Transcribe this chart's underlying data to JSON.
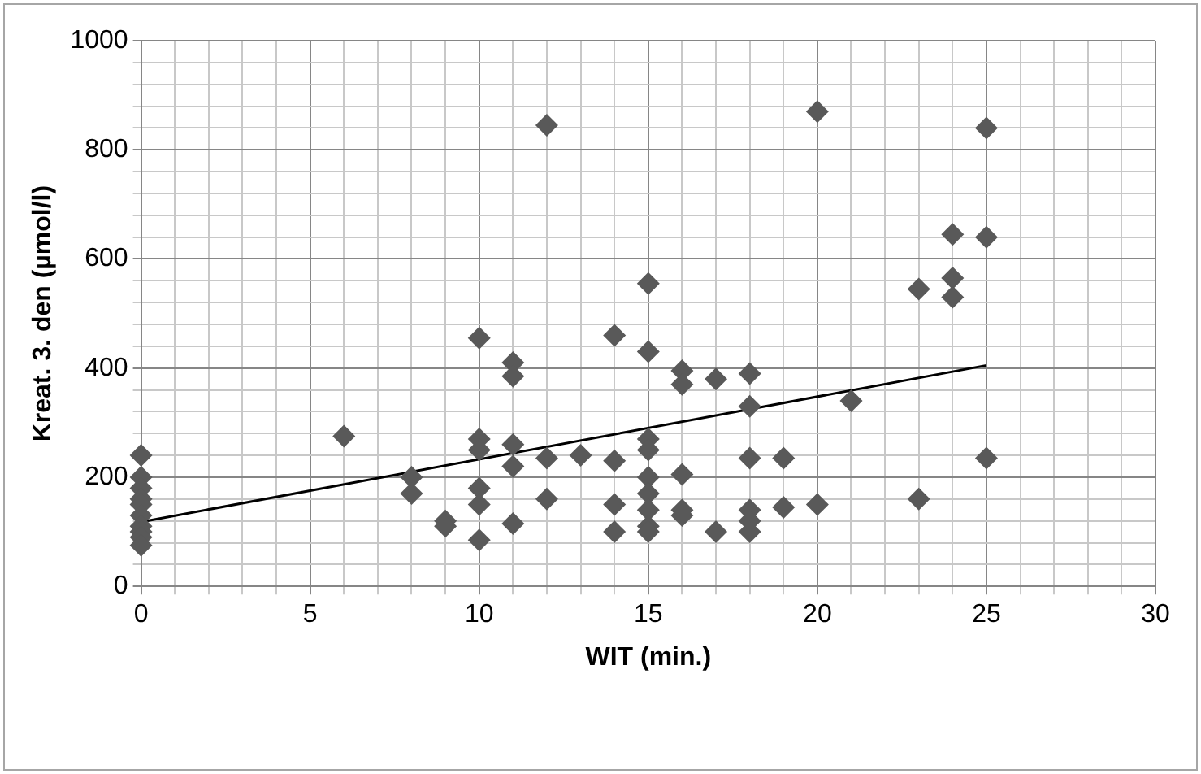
{
  "chart_data": {
    "type": "scatter",
    "xlabel": "WIT (min.)",
    "ylabel": "Kreat. 3. den (µmol/l)",
    "xlim": [
      0,
      30
    ],
    "ylim": [
      0,
      1000
    ],
    "xticks": [
      0,
      {
        "value": 1,
        "label": null
      },
      {
        "value": 2,
        "label": null
      },
      {
        "value": 3,
        "label": null
      },
      {
        "value": 4,
        "label": null
      },
      5,
      {
        "value": 6,
        "label": null
      },
      {
        "value": 7,
        "label": null
      },
      {
        "value": 8,
        "label": null
      },
      {
        "value": 9,
        "label": null
      },
      10,
      {
        "value": 11,
        "label": null
      },
      {
        "value": 12,
        "label": null
      },
      {
        "value": 13,
        "label": null
      },
      {
        "value": 14,
        "label": null
      },
      15,
      {
        "value": 16,
        "label": null
      },
      {
        "value": 17,
        "label": null
      },
      {
        "value": 18,
        "label": null
      },
      {
        "value": 19,
        "label": null
      },
      20,
      {
        "value": 21,
        "label": null
      },
      {
        "value": 22,
        "label": null
      },
      {
        "value": 23,
        "label": null
      },
      {
        "value": 24,
        "label": null
      },
      25,
      {
        "value": 26,
        "label": null
      },
      {
        "value": 27,
        "label": null
      },
      {
        "value": 28,
        "label": null
      },
      {
        "value": 29,
        "label": null
      },
      30
    ],
    "yticks": [
      0,
      {
        "value": 40,
        "label": null
      },
      {
        "value": 80,
        "label": null
      },
      {
        "value": 120,
        "label": null
      },
      {
        "value": 160,
        "label": null
      },
      200,
      {
        "value": 240,
        "label": null
      },
      {
        "value": 280,
        "label": null
      },
      {
        "value": 320,
        "label": null
      },
      {
        "value": 360,
        "label": null
      },
      400,
      {
        "value": 440,
        "label": null
      },
      {
        "value": 480,
        "label": null
      },
      {
        "value": 520,
        "label": null
      },
      {
        "value": 560,
        "label": null
      },
      600,
      {
        "value": 640,
        "label": null
      },
      {
        "value": 680,
        "label": null
      },
      {
        "value": 720,
        "label": null
      },
      {
        "value": 760,
        "label": null
      },
      800,
      {
        "value": 840,
        "label": null
      },
      {
        "value": 880,
        "label": null
      },
      {
        "value": 920,
        "label": null
      },
      {
        "value": 960,
        "label": null
      },
      1000
    ],
    "grid": true,
    "legend": false,
    "series": [
      {
        "marker": "diamond",
        "color": "#595959",
        "x": [
          0,
          0,
          0,
          0,
          0,
          0,
          0,
          0,
          0,
          0,
          6,
          8,
          8,
          9,
          9,
          10,
          10,
          10,
          10,
          10,
          10,
          11,
          11,
          11,
          11,
          11,
          12,
          12,
          12,
          13,
          14,
          14,
          14,
          14,
          15,
          15,
          15,
          15,
          15,
          15,
          15,
          15,
          15,
          16,
          16,
          16,
          16,
          16,
          17,
          17,
          18,
          18,
          18,
          18,
          18,
          18,
          19,
          19,
          20,
          20,
          21,
          23,
          23,
          24,
          24,
          24,
          25,
          25,
          25
        ],
        "values": [
          240,
          200,
          180,
          160,
          150,
          130,
          110,
          100,
          90,
          75,
          275,
          200,
          170,
          120,
          110,
          455,
          270,
          250,
          180,
          150,
          85,
          410,
          385,
          260,
          220,
          115,
          845,
          235,
          160,
          240,
          460,
          230,
          150,
          100,
          555,
          430,
          270,
          250,
          200,
          170,
          140,
          110,
          100,
          395,
          370,
          205,
          140,
          130,
          380,
          100,
          390,
          330,
          235,
          140,
          120,
          100,
          235,
          145,
          870,
          150,
          340,
          545,
          160,
          645,
          565,
          530,
          840,
          640,
          235
        ]
      },
      {
        "type": "line",
        "marker": "none",
        "line_style": "solid",
        "color": "#000000",
        "x": [
          0,
          25
        ],
        "values": [
          118,
          405
        ]
      }
    ]
  }
}
